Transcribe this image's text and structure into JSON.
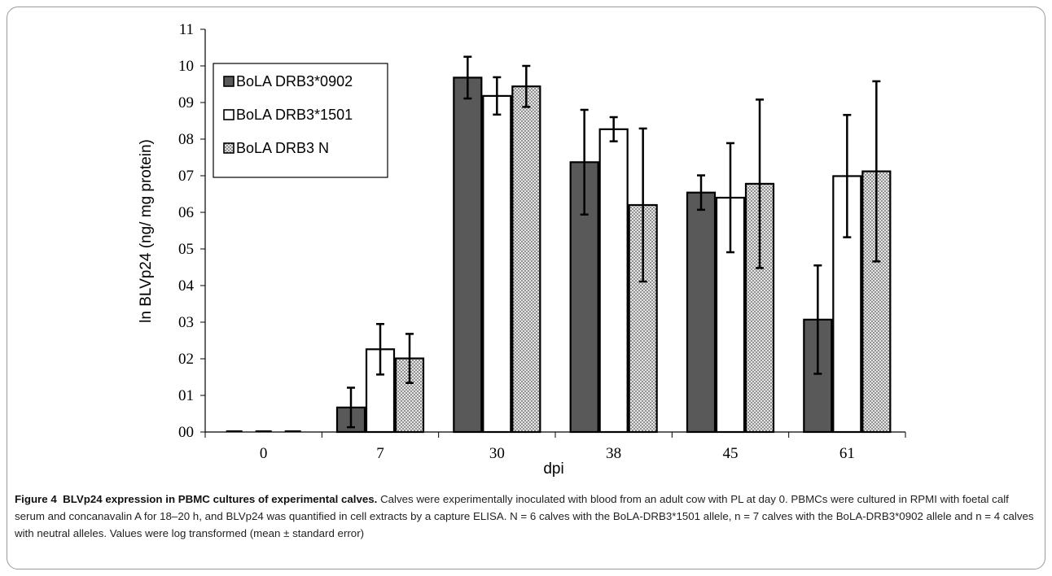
{
  "chart_data": {
    "type": "bar",
    "categories": [
      "0",
      "7",
      "30",
      "38",
      "45",
      "61"
    ],
    "xlabel": "dpi",
    "ylabel": "ln BLVp24 (ng/ mg protein)",
    "ylim": [
      0,
      11
    ],
    "yticks": [
      "00",
      "01",
      "02",
      "03",
      "04",
      "05",
      "06",
      "07",
      "08",
      "09",
      "10",
      "11"
    ],
    "grid": false,
    "legend_position": "top-left",
    "series": [
      {
        "name": "BoLA DRB3*0902",
        "values": [
          0,
          0.67,
          9.68,
          7.37,
          6.54,
          3.07
        ],
        "errors": [
          0,
          0.54,
          0.57,
          1.43,
          0.47,
          1.48
        ],
        "fill": "#595959",
        "pattern": "solid"
      },
      {
        "name": "BoLA DRB3*1501",
        "values": [
          0,
          2.26,
          9.18,
          8.27,
          6.4,
          6.99
        ],
        "errors": [
          0,
          0.69,
          0.51,
          0.33,
          1.49,
          1.67
        ],
        "fill": "#ffffff",
        "pattern": "solid"
      },
      {
        "name": "BoLA DRB3 N",
        "values": [
          0,
          2.01,
          9.44,
          6.2,
          6.78,
          7.12
        ],
        "errors": [
          0,
          0.67,
          0.56,
          2.09,
          2.3,
          2.46
        ],
        "fill": "#c8c8c8",
        "pattern": "dots"
      }
    ]
  },
  "caption": {
    "label": "Figure 4",
    "title": "BLVp24 expression in PBMC cultures of experimental calves.",
    "text": "Calves were experimentally inoculated with blood from an adult cow with PL at day 0. PBMCs were cultured in RPMI with foetal calf serum and concanavalin A for 18–20 h, and BLVp24 was quantified in cell extracts by a capture ELISA. N = 6 calves with the BoLA-DRB3*1501 allele, n = 7 calves with the BoLA-DRB3*0902 allele and n = 4 calves with neutral alleles. Values were log transformed (mean ± standard error)"
  }
}
